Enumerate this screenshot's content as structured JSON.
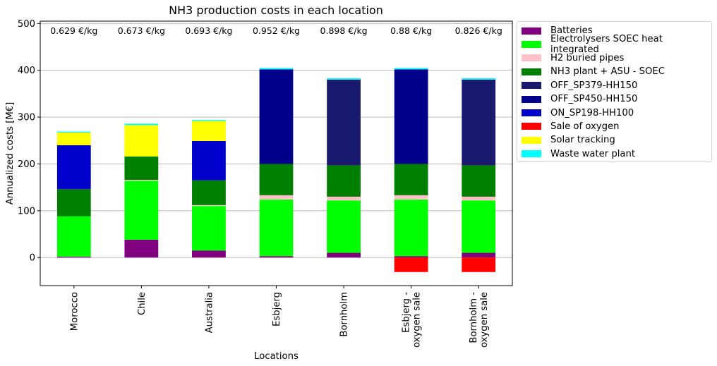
{
  "chart_data": {
    "type": "bar",
    "stacked": true,
    "title": "NH3 production costs in each location",
    "xlabel": "Locations",
    "ylabel": "Annualized costs [M€]",
    "ylim": [
      -60,
      505
    ],
    "yticks": [
      0,
      100,
      200,
      300,
      400,
      500
    ],
    "grid": "y",
    "legend_placement": "outside-right",
    "categories": [
      "Morocco",
      "Chile",
      "Australia",
      "Esbjerg",
      "Bornholm",
      "Esbjerg -\noxygen sale",
      "Bornholm -\noxygen sale"
    ],
    "annotations": [
      "0.629 €/kg",
      "0.673 €/kg",
      "0.693 €/kg",
      "0.952 €/kg",
      "0.898 €/kg",
      "0.88 €/kg",
      "0.826 €/kg"
    ],
    "series": [
      {
        "name": "Batteries",
        "color": "#800080",
        "values": [
          2,
          38,
          15,
          3,
          10,
          3,
          10
        ]
      },
      {
        "name": "Electrolysers SOEC heat integrated",
        "color": "#00ff00",
        "values": [
          86,
          126,
          95,
          121,
          112,
          121,
          112
        ]
      },
      {
        "name": "H2 buried pipes",
        "color": "#ffc0cb",
        "values": [
          0,
          2,
          2,
          9,
          8,
          9,
          8
        ]
      },
      {
        "name": "NH3 plant + ASU - SOEC",
        "color": "#008000",
        "values": [
          58,
          50,
          53,
          67,
          67,
          67,
          67
        ]
      },
      {
        "name": "OFF_SP379-HH150",
        "color": "#191970",
        "values": [
          0,
          0,
          0,
          0,
          183,
          0,
          183
        ]
      },
      {
        "name": "OFF_SP450-HH150",
        "color": "#00008b",
        "values": [
          0,
          0,
          0,
          202,
          0,
          202,
          0
        ]
      },
      {
        "name": "ON_SP198-HH100",
        "color": "#0000cd",
        "values": [
          94,
          0,
          84,
          0,
          0,
          0,
          0
        ]
      },
      {
        "name": "Sale of oxygen",
        "color": "#ff0000",
        "values": [
          0,
          0,
          0,
          0,
          0,
          -31,
          -31
        ]
      },
      {
        "name": "Solar tracking",
        "color": "#ffff00",
        "values": [
          27,
          67,
          43,
          0,
          0,
          0,
          0
        ]
      },
      {
        "name": "Waste water plant",
        "color": "#00ffff",
        "values": [
          2,
          3,
          2,
          3,
          3,
          3,
          3
        ]
      }
    ]
  }
}
